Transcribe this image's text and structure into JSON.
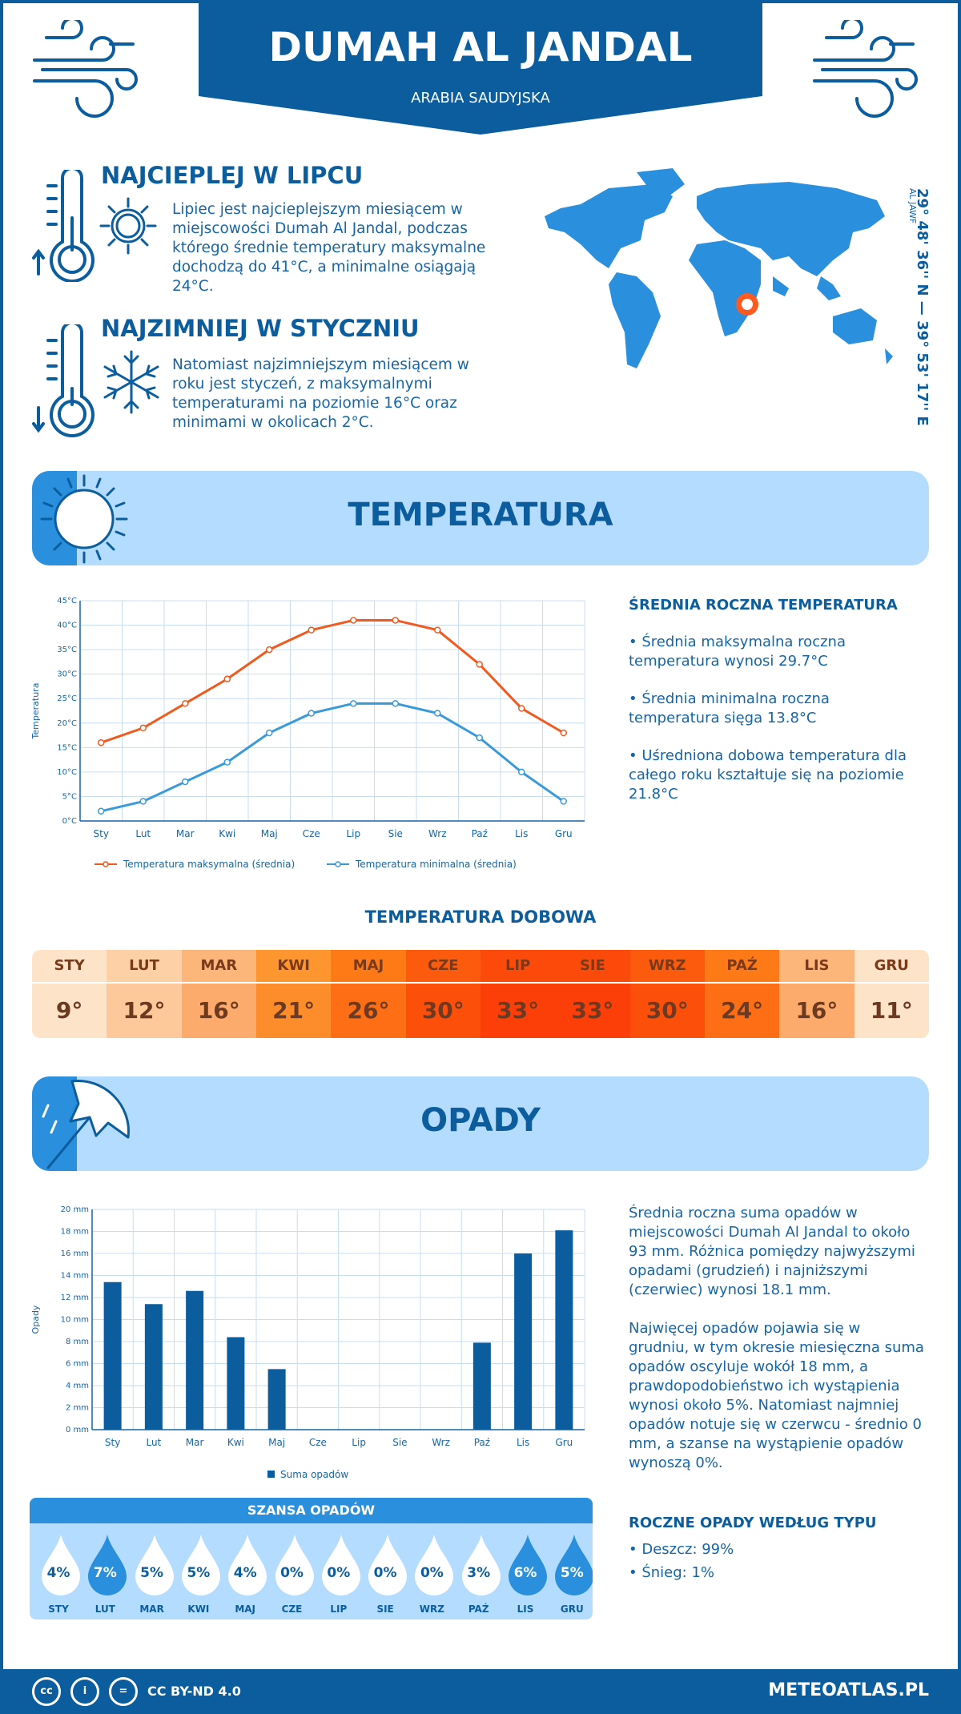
{
  "header": {
    "city": "DUMAH AL JANDAL",
    "country": "ARABIA SAUDYJSKA"
  },
  "hottest": {
    "title": "NAJCIEPLEJ W LIPCU",
    "text": "Lipiec jest najcieplejszym miesiącem w miejscowości Dumah Al Jandal, podczas którego średnie temperatury maksymalne dochodzą do 41°C, a minimalne osiągają 24°C."
  },
  "coldest": {
    "title": "NAJZIMNIEJ W STYCZNIU",
    "text": "Natomiast najzimniejszym miesiącem w roku jest styczeń, z maksymalnymi temperaturami na poziomie 16°C oraz minimami w okolicach 2°C."
  },
  "coords": {
    "main": "29° 48' 36'' N — 39° 53' 17'' E",
    "region": "AL JAWF"
  },
  "temperature_section": {
    "title": "TEMPERATURA",
    "side_title": "ŚREDNIA ROCZNA TEMPERATURA",
    "bullets": [
      "• Średnia maksymalna roczna temperatura wynosi 29.7°C",
      "• Średnia minimalna roczna temperatura sięga 13.8°C",
      "• Uśredniona dobowa temperatura dla całego roku kształtuje się na poziomie 21.8°C"
    ]
  },
  "daily": {
    "title": "TEMPERATURA DOBOWA",
    "months": [
      "STY",
      "LUT",
      "MAR",
      "KWI",
      "MAJ",
      "CZE",
      "LIP",
      "SIE",
      "WRZ",
      "PAŹ",
      "LIS",
      "GRU"
    ],
    "values": [
      "9°",
      "12°",
      "16°",
      "21°",
      "26°",
      "30°",
      "33°",
      "33°",
      "30°",
      "24°",
      "16°",
      "11°"
    ],
    "head_colors": [
      "#fde3c8",
      "#fdd0a5",
      "#fdb67a",
      "#fd962f",
      "#fd7a17",
      "#fc5a0c",
      "#fc4a0a",
      "#fc4a0a",
      "#fc5a0c",
      "#fd7a17",
      "#fdb67a",
      "#fde3c8"
    ],
    "val_colors": [
      "#fde3c8",
      "#fdc89a",
      "#fdab6c",
      "#fd8c2a",
      "#fd6e15",
      "#fc4f0a",
      "#fc3f08",
      "#fc3f08",
      "#fc4f0a",
      "#fd6e15",
      "#fdab6c",
      "#fde3c8"
    ]
  },
  "precip_section": {
    "title": "OPADY",
    "para1": "Średnia roczna suma opadów w miejscowości Dumah Al Jandal to około 93 mm. Różnica pomiędzy najwyższymi opadami (grudzień) i najniższymi (czerwiec) wynosi 18.1 mm.",
    "para2": "Najwięcej opadów pojawia się w grudniu, w tym okresie miesięczna suma opadów oscyluje wokół 18 mm, a prawdopodobieństwo ich wystąpienia wynosi około 5%. Natomiast najmniej opadów notuje się w czerwcu - średnio 0 mm, a szanse na wystąpienie opadów wynoszą 0%.",
    "type_title": "ROCZNE OPADY WEDŁUG TYPU",
    "types": [
      "• Deszcz: 99%",
      "• Śnieg: 1%"
    ]
  },
  "chance": {
    "title": "SZANSA OPADÓW",
    "months": [
      "STY",
      "LUT",
      "MAR",
      "KWI",
      "MAJ",
      "CZE",
      "LIP",
      "SIE",
      "WRZ",
      "PAŹ",
      "LIS",
      "GRU"
    ],
    "values": [
      "4%",
      "7%",
      "5%",
      "5%",
      "4%",
      "0%",
      "0%",
      "0%",
      "0%",
      "3%",
      "6%",
      "5%"
    ],
    "dark": [
      false,
      true,
      false,
      false,
      false,
      false,
      false,
      false,
      false,
      false,
      true,
      true
    ]
  },
  "footer": {
    "license": "CC BY-ND 4.0",
    "site": "METEOATLAS.PL"
  },
  "chart_data": [
    {
      "type": "line",
      "categories": [
        "Sty",
        "Lut",
        "Mar",
        "Kwi",
        "Maj",
        "Cze",
        "Lip",
        "Sie",
        "Wrz",
        "Paź",
        "Lis",
        "Gru"
      ],
      "series": [
        {
          "name": "Temperatura maksymalna (średnia)",
          "values": [
            16,
            19,
            24,
            29,
            35,
            39,
            41,
            41,
            39,
            32,
            23,
            18
          ],
          "color": "#f05a1e"
        },
        {
          "name": "Temperatura minimalna (średnia)",
          "values": [
            2,
            4,
            8,
            12,
            18,
            22,
            24,
            24,
            22,
            17,
            10,
            4
          ],
          "color": "#3a9ad9"
        }
      ],
      "ylabel": "Temperatura",
      "yticks": [
        "0°C",
        "5°C",
        "10°C",
        "15°C",
        "20°C",
        "25°C",
        "30°C",
        "35°C",
        "40°C",
        "45°C"
      ],
      "ylim": [
        0,
        45
      ],
      "grid": true,
      "legend": "bottom"
    },
    {
      "type": "bar",
      "categories": [
        "Sty",
        "Lut",
        "Mar",
        "Kwi",
        "Maj",
        "Cze",
        "Lip",
        "Sie",
        "Wrz",
        "Paź",
        "Lis",
        "Gru"
      ],
      "series": [
        {
          "name": "Suma opadów",
          "values": [
            13.4,
            11.4,
            12.6,
            8.4,
            5.5,
            0,
            0,
            0,
            0,
            7.9,
            16,
            18.1
          ],
          "color": "#0b5d9e"
        }
      ],
      "ylabel": "Opady",
      "yticks": [
        "0 mm",
        "2 mm",
        "4 mm",
        "6 mm",
        "8 mm",
        "10 mm",
        "12 mm",
        "14 mm",
        "16 mm",
        "18 mm",
        "20 mm"
      ],
      "ylim": [
        0,
        20
      ],
      "grid": true,
      "legend": "bottom"
    }
  ]
}
